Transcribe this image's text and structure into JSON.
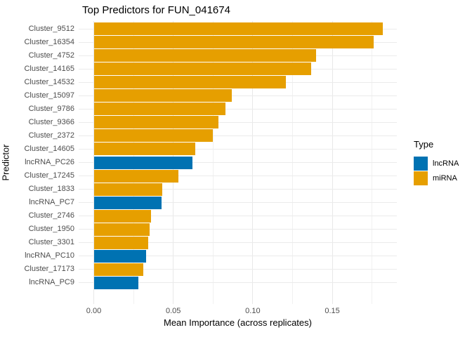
{
  "chart_data": {
    "type": "bar",
    "orientation": "horizontal",
    "title": "Top Predictors for FUN_041674",
    "xlabel": "Mean Importance (across replicates)",
    "ylabel": "Predictor",
    "grid": true,
    "legend_position": "right",
    "legend": {
      "title": "Type",
      "entries": [
        {
          "label": "lncRNA",
          "color": "#0072B2"
        },
        {
          "label": "miRNA",
          "color": "#E69F00"
        }
      ]
    },
    "colors": {
      "lncRNA": "#0072B2",
      "miRNA": "#E69F00"
    },
    "x_axis": {
      "range": [
        -0.0095,
        0.1906
      ],
      "major_ticks": [
        0.0,
        0.05,
        0.1,
        0.15
      ],
      "tick_labels": [
        "0.00",
        "0.05",
        "0.10",
        "0.15"
      ],
      "minor_ticks": [
        0.025,
        0.075,
        0.125,
        0.175
      ]
    },
    "bars": [
      {
        "label": "Cluster_9512",
        "value": 0.1816,
        "type": "miRNA"
      },
      {
        "label": "Cluster_16354",
        "value": 0.176,
        "type": "miRNA"
      },
      {
        "label": "Cluster_4752",
        "value": 0.1399,
        "type": "miRNA"
      },
      {
        "label": "Cluster_14165",
        "value": 0.1366,
        "type": "miRNA"
      },
      {
        "label": "Cluster_14532",
        "value": 0.1206,
        "type": "miRNA"
      },
      {
        "label": "Cluster_15097",
        "value": 0.0869,
        "type": "miRNA"
      },
      {
        "label": "Cluster_9786",
        "value": 0.0827,
        "type": "miRNA"
      },
      {
        "label": "Cluster_9366",
        "value": 0.0783,
        "type": "miRNA"
      },
      {
        "label": "Cluster_2372",
        "value": 0.075,
        "type": "miRNA"
      },
      {
        "label": "Cluster_14605",
        "value": 0.0637,
        "type": "miRNA"
      },
      {
        "label": "lncRNA_PC26",
        "value": 0.062,
        "type": "lncRNA"
      },
      {
        "label": "Cluster_17245",
        "value": 0.0532,
        "type": "miRNA"
      },
      {
        "label": "Cluster_1833",
        "value": 0.0431,
        "type": "miRNA"
      },
      {
        "label": "lncRNA_PC7",
        "value": 0.0426,
        "type": "lncRNA"
      },
      {
        "label": "Cluster_2746",
        "value": 0.0362,
        "type": "miRNA"
      },
      {
        "label": "Cluster_1950",
        "value": 0.0352,
        "type": "miRNA"
      },
      {
        "label": "Cluster_3301",
        "value": 0.0342,
        "type": "miRNA"
      },
      {
        "label": "lncRNA_PC10",
        "value": 0.0329,
        "type": "lncRNA"
      },
      {
        "label": "Cluster_17173",
        "value": 0.0311,
        "type": "miRNA"
      },
      {
        "label": "lncRNA_PC9",
        "value": 0.0282,
        "type": "lncRNA"
      }
    ]
  }
}
